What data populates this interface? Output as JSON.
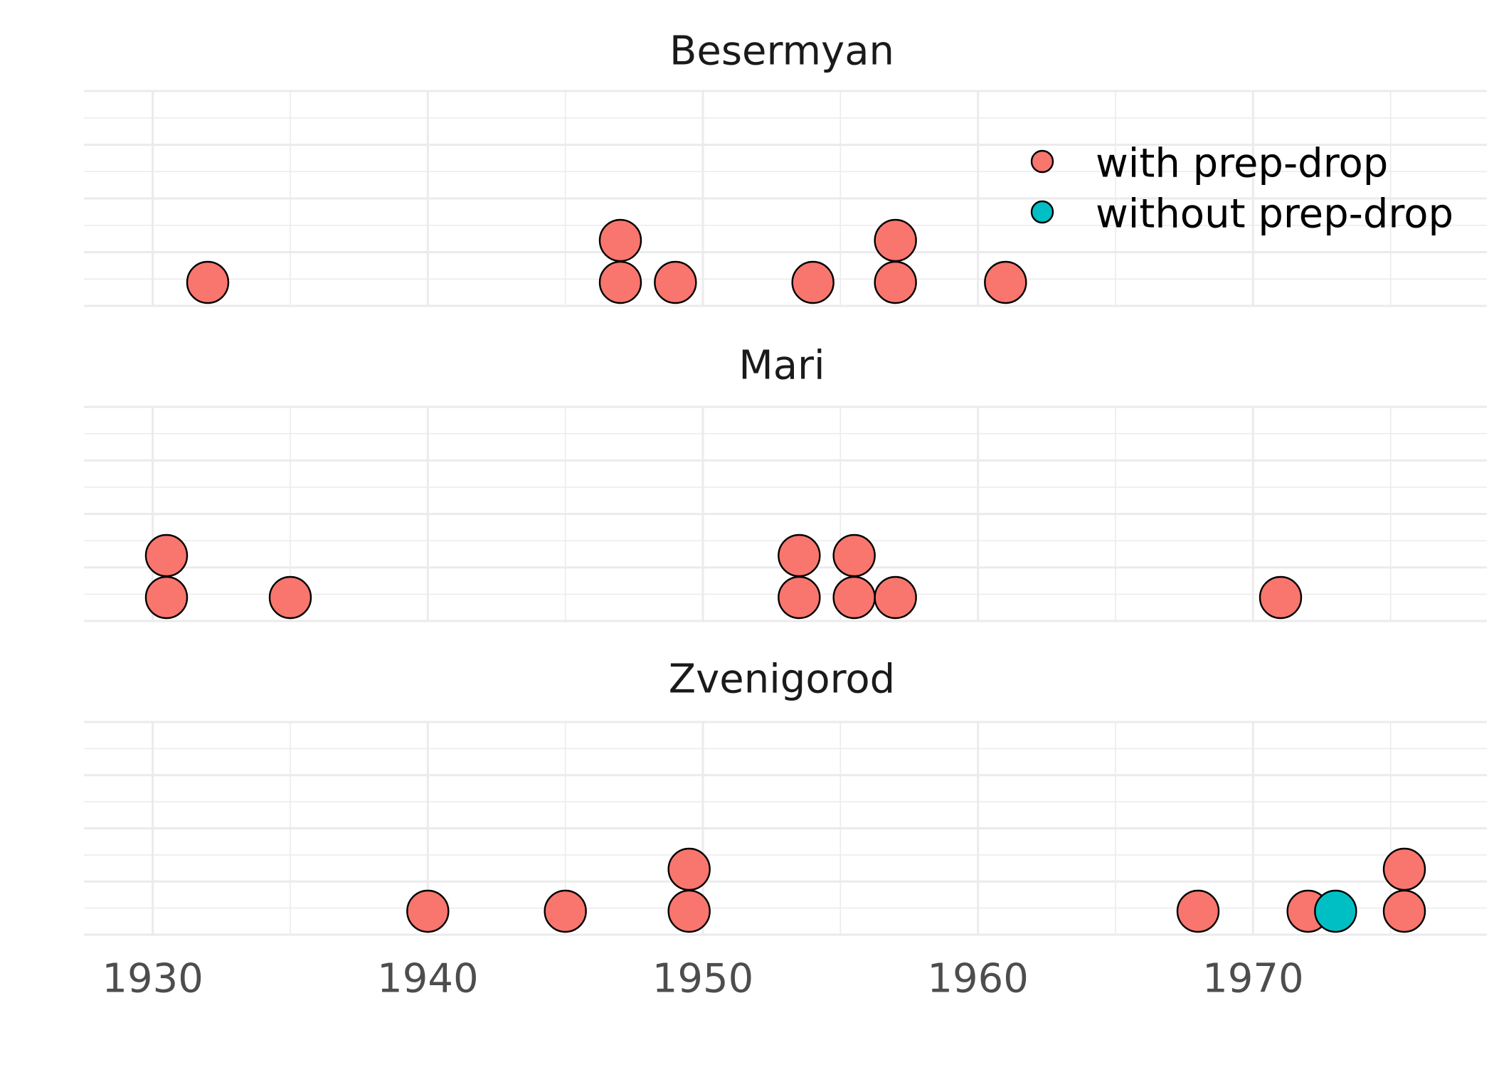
{
  "chart_data": {
    "type": "scatter",
    "subtype": "facetted dot plot",
    "xlim": [
      1927.5,
      1978.5
    ],
    "x_ticks": [
      1930,
      1940,
      1950,
      1960,
      1970
    ],
    "x_tick_labels": [
      "1930",
      "1940",
      "1950",
      "1960",
      "1970"
    ],
    "y_axis_shown": false,
    "grid": true,
    "legend_position": "top-right",
    "colors": {
      "with prep-drop": "#F8766D",
      "without prep-drop": "#00BFC4"
    },
    "series": [
      {
        "name": "with prep-drop"
      },
      {
        "name": "without prep-drop"
      }
    ],
    "panels": [
      {
        "title": "Besermyan",
        "points": [
          {
            "x": 1932,
            "stack": 1,
            "group": "with prep-drop"
          },
          {
            "x": 1947,
            "stack": 1,
            "group": "with prep-drop"
          },
          {
            "x": 1947,
            "stack": 2,
            "group": "with prep-drop"
          },
          {
            "x": 1949,
            "stack": 1,
            "group": "with prep-drop"
          },
          {
            "x": 1954,
            "stack": 1,
            "group": "with prep-drop"
          },
          {
            "x": 1957,
            "stack": 1,
            "group": "with prep-drop"
          },
          {
            "x": 1957,
            "stack": 2,
            "group": "with prep-drop"
          },
          {
            "x": 1961,
            "stack": 1,
            "group": "with prep-drop"
          }
        ]
      },
      {
        "title": "Mari",
        "points": [
          {
            "x": 1930.5,
            "stack": 1,
            "group": "with prep-drop"
          },
          {
            "x": 1930.5,
            "stack": 2,
            "group": "with prep-drop"
          },
          {
            "x": 1935,
            "stack": 1,
            "group": "with prep-drop"
          },
          {
            "x": 1953.5,
            "stack": 1,
            "group": "with prep-drop"
          },
          {
            "x": 1953.5,
            "stack": 2,
            "group": "with prep-drop"
          },
          {
            "x": 1955.5,
            "stack": 1,
            "group": "with prep-drop"
          },
          {
            "x": 1955.5,
            "stack": 2,
            "group": "with prep-drop"
          },
          {
            "x": 1957,
            "stack": 1,
            "group": "with prep-drop"
          },
          {
            "x": 1971,
            "stack": 1,
            "group": "with prep-drop"
          }
        ]
      },
      {
        "title": "Zvenigorod",
        "points": [
          {
            "x": 1940,
            "stack": 1,
            "group": "with prep-drop"
          },
          {
            "x": 1945,
            "stack": 1,
            "group": "with prep-drop"
          },
          {
            "x": 1949.5,
            "stack": 1,
            "group": "with prep-drop"
          },
          {
            "x": 1949.5,
            "stack": 2,
            "group": "with prep-drop"
          },
          {
            "x": 1968,
            "stack": 1,
            "group": "with prep-drop"
          },
          {
            "x": 1972,
            "stack": 1,
            "group": "with prep-drop"
          },
          {
            "x": 1973,
            "stack": 1,
            "group": "without prep-drop"
          },
          {
            "x": 1975.5,
            "stack": 1,
            "group": "with prep-drop"
          },
          {
            "x": 1975.5,
            "stack": 2,
            "group": "with prep-drop"
          }
        ]
      }
    ]
  }
}
